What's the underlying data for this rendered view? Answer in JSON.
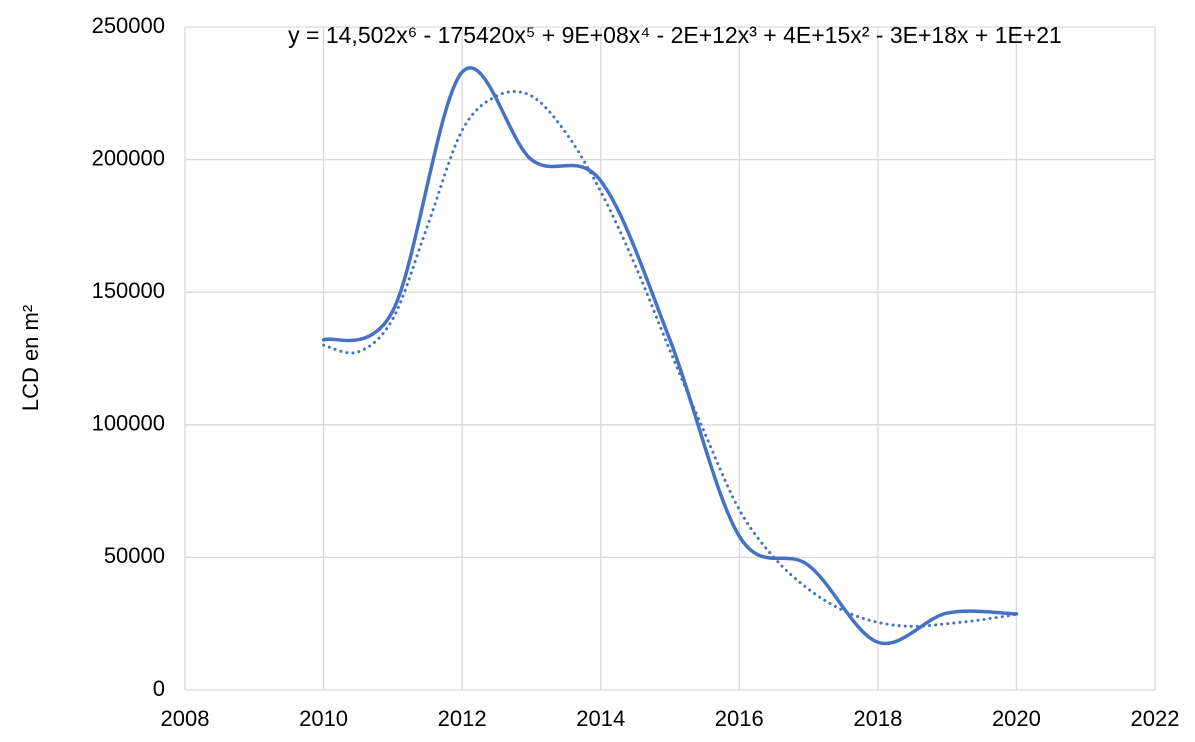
{
  "chart_data": {
    "type": "scatter",
    "ylabel": "LCD en m²",
    "annotation": "y = 14,502x⁶ - 175420x⁵ + 9E+08x⁴ - 2E+12x³ + 4E+15x² - 3E+18x + 1E+21",
    "xlim": [
      2008,
      2022
    ],
    "xticks": [
      2008,
      2010,
      2012,
      2014,
      2016,
      2018,
      2020,
      2022
    ],
    "ylim": [
      0,
      250000
    ],
    "yticks": [
      0,
      50000,
      100000,
      150000,
      200000,
      250000
    ],
    "grid": true,
    "series": [
      {
        "color": "#4472c4",
        "dash": false,
        "x": [
          2010,
          2011,
          2012,
          2013,
          2014,
          2015,
          2016,
          2017,
          2018,
          2019,
          2020
        ],
        "values": [
          132000,
          143000,
          233000,
          200000,
          192000,
          132000,
          58000,
          47000,
          18000,
          29000,
          28700
        ]
      },
      {
        "color": "#4472c4",
        "dash": true,
        "x": [
          2010,
          2010.5,
          2011,
          2011.5,
          2012,
          2012.5,
          2013,
          2013.5,
          2014,
          2014.5,
          2015,
          2015.5,
          2016,
          2016.5,
          2017,
          2017.5,
          2018,
          2018.5,
          2019,
          2019.5,
          2020
        ],
        "values": [
          130000,
          127500,
          140000,
          175000,
          211000,
          224000,
          224000,
          210000,
          188000,
          160000,
          128000,
          97000,
          68000,
          50000,
          38000,
          30000,
          25500,
          24000,
          25000,
          26500,
          28500
        ]
      }
    ]
  }
}
